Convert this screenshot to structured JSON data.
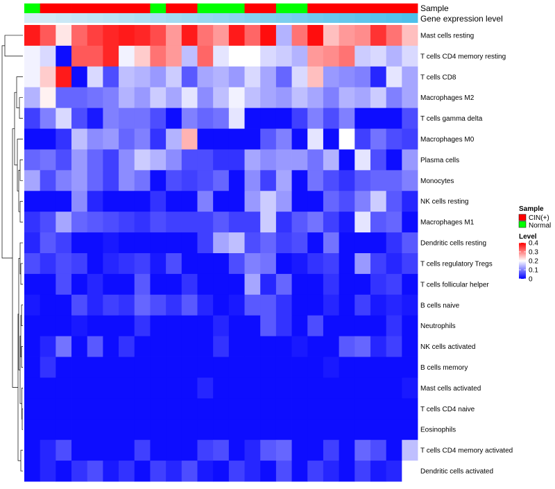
{
  "chart_data": {
    "type": "heatmap",
    "title": "",
    "xlabel": "",
    "ylabel": "",
    "annotation_labels": [
      "Sample",
      "Gene expression level"
    ],
    "sample_annotation": [
      "Normal",
      "CIN(+)",
      "CIN(+)",
      "CIN(+)",
      "CIN(+)",
      "CIN(+)",
      "CIN(+)",
      "CIN(+)",
      "Normal",
      "CIN(+)",
      "CIN(+)",
      "Normal",
      "Normal",
      "Normal",
      "CIN(+)",
      "CIN(+)",
      "Normal",
      "Normal",
      "CIN(+)",
      "CIN(+)",
      "CIN(+)",
      "CIN(+)",
      "CIN(+)",
      "CIN(+)",
      "CIN(+)"
    ],
    "expression_level": [
      0.05,
      0.08,
      0.12,
      0.16,
      0.2,
      0.24,
      0.28,
      0.32,
      0.36,
      0.4,
      0.44,
      0.48,
      0.52,
      0.56,
      0.6,
      0.64,
      0.68,
      0.72,
      0.76,
      0.8,
      0.84,
      0.88,
      0.92,
      0.96,
      1.0
    ],
    "rows": [
      "Mast cells resting",
      "T cells CD4 memory resting",
      "T cells CD8",
      "Macrophages M2",
      "T cells gamma delta",
      "Macrophages M0",
      "Plasma cells",
      "Monocytes",
      "NK cells resting",
      "Macrophages M1",
      "Dendritic cells resting",
      "T cells regulatory  Tregs",
      "T cells follicular helper",
      "B cells naive",
      "Neutrophils",
      "NK cells activated",
      "B cells memory",
      "Mast cells activated",
      "T cells CD4 naive",
      "Eosinophils",
      "T cells CD4 memory activated",
      "Dendritic cells activated"
    ],
    "values": [
      [
        0.38,
        0.33,
        0.22,
        0.32,
        0.35,
        0.37,
        0.38,
        0.37,
        0.34,
        0.28,
        0.38,
        0.31,
        0.28,
        0.38,
        0.32,
        0.39,
        0.14,
        0.31,
        0.39,
        0.25,
        0.28,
        0.29,
        0.36,
        0.31,
        0.25
      ],
      [
        0.19,
        0.17,
        0.01,
        0.33,
        0.33,
        0.37,
        0.19,
        0.24,
        0.31,
        0.28,
        0.15,
        0.32,
        0.18,
        0.2,
        0.2,
        0.17,
        0.16,
        0.14,
        0.28,
        0.29,
        0.31,
        0.16,
        0.17,
        0.14,
        0.17
      ],
      [
        0.19,
        0.24,
        0.38,
        0.01,
        0.17,
        0.06,
        0.15,
        0.14,
        0.12,
        0.16,
        0.07,
        0.13,
        0.14,
        0.12,
        0.17,
        0.13,
        0.08,
        0.17,
        0.25,
        0.12,
        0.11,
        0.1,
        0.03,
        0.18,
        0.13
      ],
      [
        0.14,
        0.21,
        0.08,
        0.08,
        0.09,
        0.1,
        0.14,
        0.12,
        0.16,
        0.13,
        0.18,
        0.11,
        0.15,
        0.19,
        0.15,
        0.13,
        0.12,
        0.15,
        0.13,
        0.1,
        0.14,
        0.13,
        0.16,
        0.1,
        0.13
      ],
      [
        0.05,
        0.1,
        0.17,
        0.06,
        0.02,
        0.1,
        0.09,
        0.09,
        0.06,
        0.01,
        0.1,
        0.08,
        0.09,
        0.18,
        0.01,
        0.01,
        0.01,
        0.05,
        0.1,
        0.06,
        0.1,
        0.01,
        0.01,
        0.01,
        0.06
      ],
      [
        0.01,
        0.01,
        0.04,
        0.15,
        0.11,
        0.12,
        0.08,
        0.1,
        0.04,
        0.14,
        0.26,
        0.01,
        0.01,
        0.01,
        0.01,
        0.07,
        0.1,
        0.01,
        0.18,
        0.01,
        0.2,
        0.05,
        0.09,
        0.06,
        0.05
      ],
      [
        0.08,
        0.09,
        0.06,
        0.12,
        0.08,
        0.05,
        0.11,
        0.16,
        0.14,
        0.11,
        0.06,
        0.06,
        0.04,
        0.04,
        0.13,
        0.11,
        0.12,
        0.12,
        0.09,
        0.14,
        0.01,
        0.18,
        0.06,
        0.01,
        0.12
      ],
      [
        0.13,
        0.06,
        0.1,
        0.12,
        0.08,
        0.05,
        0.11,
        0.09,
        0.01,
        0.06,
        0.05,
        0.06,
        0.08,
        0.01,
        0.11,
        0.05,
        0.13,
        0.01,
        0.09,
        0.06,
        0.04,
        0.07,
        0.08,
        0.08,
        0.1
      ],
      [
        0.01,
        0.01,
        0.01,
        0.11,
        0.03,
        0.01,
        0.01,
        0.01,
        0.04,
        0.01,
        0.01,
        0.1,
        0.01,
        0.01,
        0.12,
        0.16,
        0.12,
        0.01,
        0.01,
        0.08,
        0.06,
        0.1,
        0.16,
        0.07,
        0.03
      ],
      [
        0.04,
        0.06,
        0.13,
        0.08,
        0.07,
        0.06,
        0.05,
        0.04,
        0.06,
        0.05,
        0.05,
        0.05,
        0.07,
        0.05,
        0.05,
        0.16,
        0.04,
        0.07,
        0.09,
        0.05,
        0.02,
        0.18,
        0.07,
        0.08,
        0.01
      ],
      [
        0.03,
        0.07,
        0.05,
        0.01,
        0.01,
        0.02,
        0.01,
        0.01,
        0.01,
        0.01,
        0.01,
        0.05,
        0.13,
        0.15,
        0.06,
        0.08,
        0.05,
        0.06,
        0.01,
        0.09,
        0.01,
        0.01,
        0.01,
        0.04,
        0.07
      ],
      [
        0.06,
        0.04,
        0.06,
        0.05,
        0.01,
        0.03,
        0.04,
        0.05,
        0.02,
        0.06,
        0.01,
        0.01,
        0.01,
        0.06,
        0.1,
        0.09,
        0.01,
        0.02,
        0.04,
        0.05,
        0.01,
        0.12,
        0.05,
        0.03,
        0.05
      ],
      [
        0.01,
        0.01,
        0.06,
        0.01,
        0.03,
        0.01,
        0.01,
        0.07,
        0.01,
        0.01,
        0.04,
        0.01,
        0.01,
        0.01,
        0.13,
        0.03,
        0.08,
        0.01,
        0.01,
        0.04,
        0.01,
        0.01,
        0.04,
        0.05,
        0.01
      ],
      [
        0.02,
        0.01,
        0.01,
        0.06,
        0.03,
        0.05,
        0.04,
        0.08,
        0.06,
        0.04,
        0.07,
        0.03,
        0.01,
        0.02,
        0.07,
        0.07,
        0.04,
        0.01,
        0.01,
        0.03,
        0.01,
        0.05,
        0.02,
        0.03,
        0.02
      ],
      [
        0.01,
        0.01,
        0.01,
        0.02,
        0.01,
        0.01,
        0.01,
        0.04,
        0.01,
        0.01,
        0.01,
        0.01,
        0.03,
        0.01,
        0.01,
        0.07,
        0.04,
        0.01,
        0.06,
        0.01,
        0.01,
        0.01,
        0.01,
        0.04,
        0.01
      ],
      [
        0.01,
        0.03,
        0.09,
        0.01,
        0.07,
        0.01,
        0.04,
        0.01,
        0.01,
        0.01,
        0.01,
        0.01,
        0.04,
        0.01,
        0.01,
        0.01,
        0.01,
        0.02,
        0.01,
        0.01,
        0.07,
        0.08,
        0.03,
        0.05,
        0.01
      ],
      [
        0.01,
        0.04,
        0.01,
        0.01,
        0.01,
        0.01,
        0.01,
        0.01,
        0.01,
        0.01,
        0.01,
        0.01,
        0.01,
        0.01,
        0.01,
        0.01,
        0.01,
        0.01,
        0.01,
        0.02,
        0.01,
        0.01,
        0.01,
        0.01,
        0.01
      ],
      [
        0.01,
        0.01,
        0.01,
        0.01,
        0.01,
        0.01,
        0.01,
        0.01,
        0.01,
        0.01,
        0.01,
        0.03,
        0.01,
        0.01,
        0.01,
        0.01,
        0.01,
        0.01,
        0.01,
        0.01,
        0.01,
        0.01,
        0.01,
        0.01,
        0.02
      ],
      [
        0.01,
        0.01,
        0.01,
        0.01,
        0.01,
        0.01,
        0.01,
        0.01,
        0.01,
        0.01,
        0.01,
        0.01,
        0.01,
        0.01,
        0.01,
        0.01,
        0.01,
        0.01,
        0.01,
        0.01,
        0.01,
        0.01,
        0.01,
        0.01,
        0.01
      ],
      [
        0.01,
        0.01,
        0.01,
        0.01,
        0.01,
        0.01,
        0.01,
        0.01,
        0.01,
        0.01,
        0.01,
        0.01,
        0.01,
        0.01,
        0.01,
        0.01,
        0.01,
        0.01,
        0.01,
        0.01,
        0.01,
        0.01,
        0.01,
        0.01,
        0.01
      ],
      [
        0.01,
        0.03,
        0.06,
        0.01,
        0.01,
        0.01,
        0.01,
        0.05,
        0.01,
        0.01,
        0.01,
        0.05,
        0.06,
        0.01,
        0.03,
        0.07,
        0.08,
        0.01,
        0.01,
        0.05,
        0.01,
        0.08,
        0.06,
        0.01,
        0.15
      ],
      [
        0.01,
        0.03,
        0.01,
        0.04,
        0.06,
        0.02,
        0.04,
        0.01,
        0.05,
        0.03,
        0.06,
        0.02,
        0.01,
        0.05,
        0.03,
        0.01,
        0.06,
        0.01,
        0.05,
        0.03,
        0.01,
        0.05,
        0.02,
        0.03,
        0.2
      ]
    ],
    "legend": {
      "sample_title": "Sample",
      "sample_items": [
        {
          "label": "CIN(+)",
          "color": "#ff0000"
        },
        {
          "label": "Normal",
          "color": "#00ff00"
        }
      ],
      "level_title": "Level",
      "level_ticks": [
        {
          "label": "0.4",
          "value": 0.4
        },
        {
          "label": "0.3",
          "value": 0.3
        },
        {
          "label": "0.2",
          "value": 0.2
        },
        {
          "label": "0.1",
          "value": 0.1
        },
        {
          "label": "0",
          "value": 0.0
        }
      ],
      "level_range": [
        0,
        0.4
      ]
    },
    "colors": {
      "low": "#0000ff",
      "mid": "#ffffff",
      "high": "#ff0000",
      "expression_low": "#dceef8",
      "expression_high": "#4dbfea",
      "dendrogram": "#000000"
    }
  }
}
